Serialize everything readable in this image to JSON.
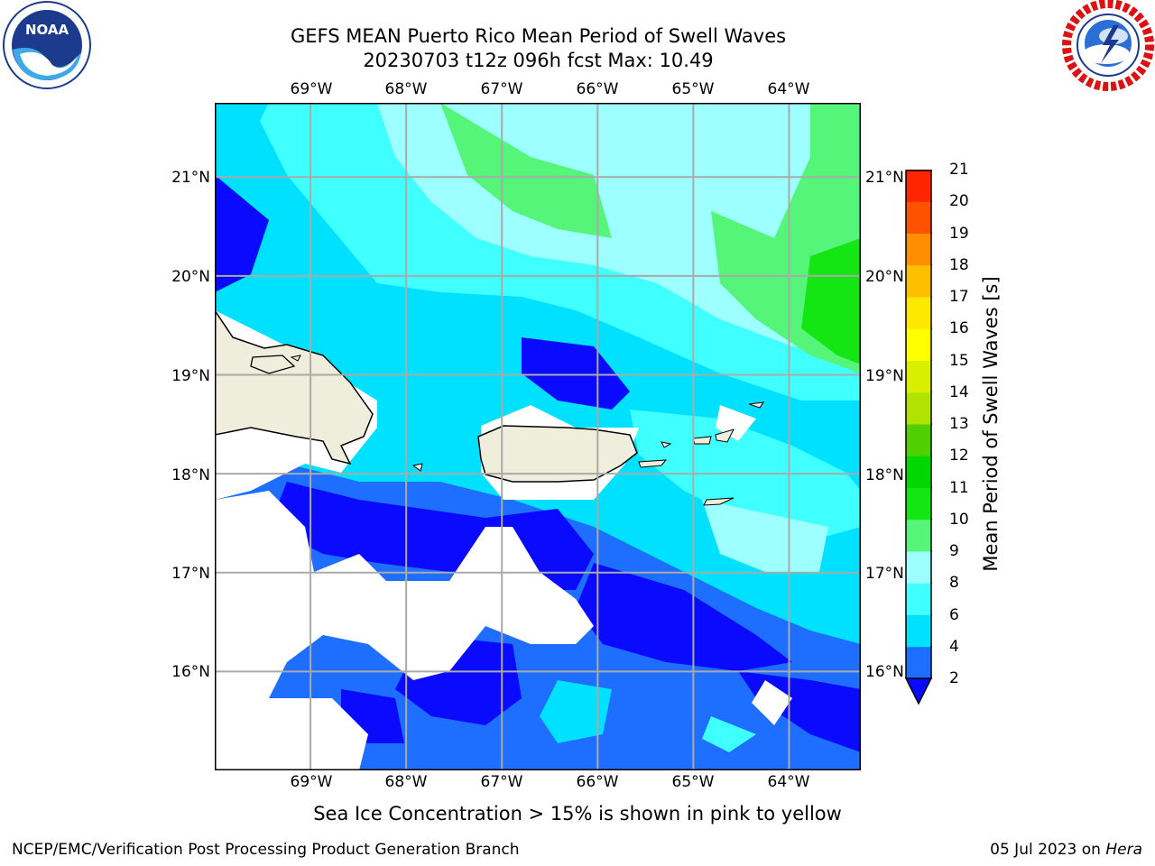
{
  "header": {
    "title_line1": "GEFS MEAN Puerto Rico Mean Period of Swell Waves",
    "title_line2": "20230703 t12z 096h fcst   Max: 10.49"
  },
  "logos": {
    "left": {
      "icon": "noaa-logo-icon",
      "text": "NOAA"
    },
    "right": {
      "icon": "nws-logo-icon"
    }
  },
  "map": {
    "lon_labels": [
      "69°W",
      "68°W",
      "67°W",
      "66°W",
      "65°W",
      "64°W"
    ],
    "lat_labels": [
      "21°N",
      "20°N",
      "19°N",
      "18°N",
      "17°N",
      "16°N"
    ],
    "lon_range": [
      -70.0,
      -63.25
    ],
    "lat_range": [
      15.0,
      21.75
    ],
    "grid": true,
    "land_color": "#efeedc",
    "coast_color": "#000000"
  },
  "colorbar": {
    "label": "Mean Period of Swell Waves [s]",
    "ticks": [
      "21",
      "20",
      "19",
      "18",
      "17",
      "16",
      "15",
      "14",
      "13",
      "12",
      "11",
      "10",
      "9",
      "8",
      "6",
      "4",
      "2"
    ],
    "levels": [
      2,
      4,
      6,
      8,
      9,
      10,
      11,
      12,
      13,
      14,
      15,
      16,
      17,
      18,
      19,
      20,
      21
    ],
    "colors": [
      "#1e6eff",
      "#00e0ff",
      "#40ffff",
      "#9dffff",
      "#55f57a",
      "#14e614",
      "#00d700",
      "#50d000",
      "#b0e400",
      "#d8f000",
      "#ffff00",
      "#ffe800",
      "#ffbf00",
      "#ff8f00",
      "#ff5200",
      "#ff2500"
    ],
    "under_color": "#0a0aff"
  },
  "footer": {
    "note": "Sea Ice Concentration > 15% is shown in pink to yellow",
    "left": "NCEP/EMC/Verification Post Processing Product Generation Branch",
    "right_date": "05 Jul 2023 on ",
    "right_host": "Hera"
  }
}
